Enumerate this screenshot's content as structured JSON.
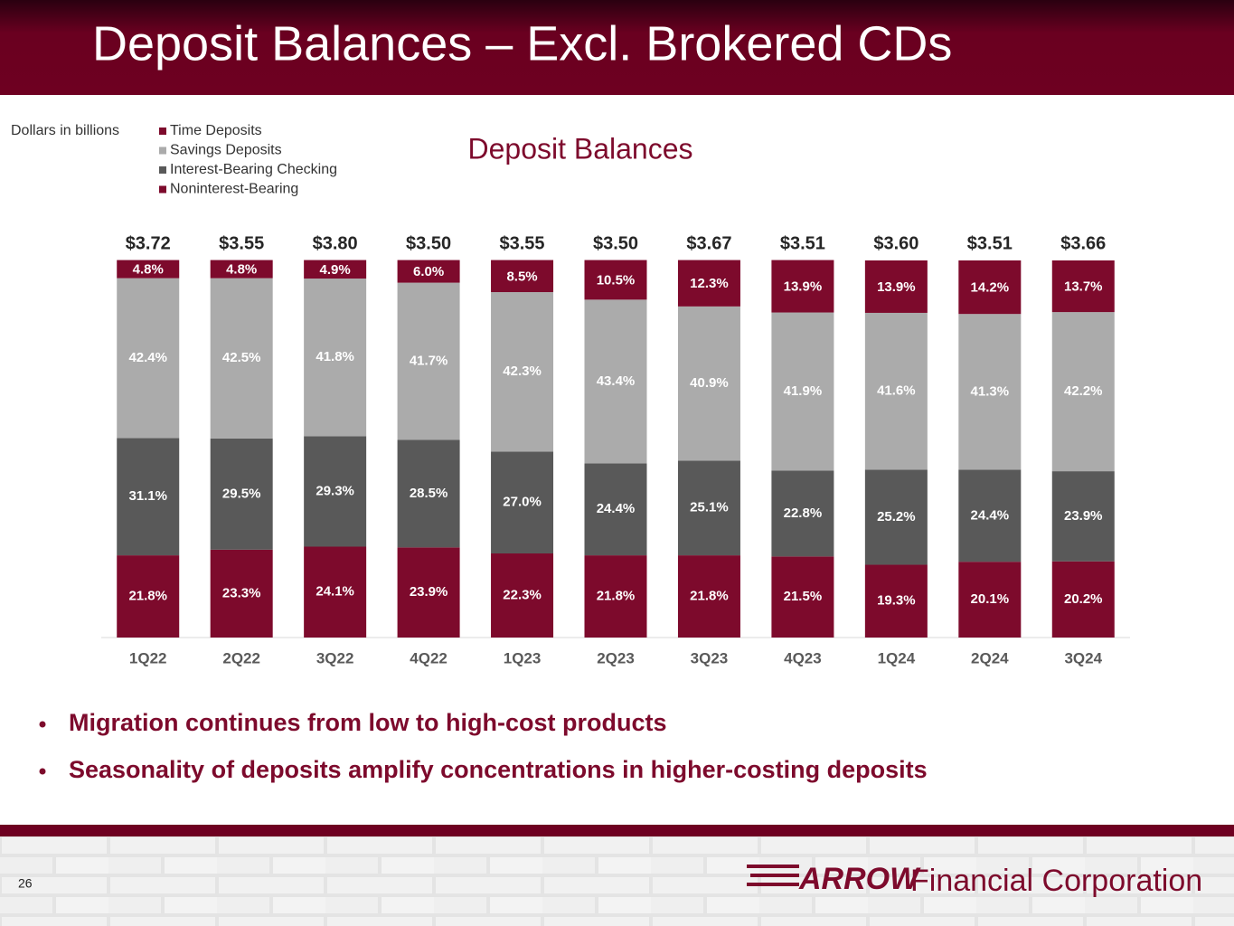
{
  "header": {
    "title": "Deposit Balances – Excl. Brokered CDs"
  },
  "chart_data": {
    "type": "stacked_bar_100",
    "title": "Deposit Balances",
    "units_note": "Dollars in billions",
    "categories": [
      "1Q22",
      "2Q22",
      "3Q22",
      "4Q22",
      "1Q23",
      "2Q23",
      "3Q23",
      "4Q23",
      "1Q24",
      "2Q24",
      "3Q24"
    ],
    "totals": [
      3.72,
      3.55,
      3.8,
      3.5,
      3.55,
      3.5,
      3.67,
      3.51,
      3.6,
      3.51,
      3.66
    ],
    "total_labels": [
      "$3.72",
      "$3.55",
      "$3.80",
      "$3.50",
      "$3.55",
      "$3.50",
      "$3.67",
      "$3.51",
      "$3.60",
      "$3.51",
      "$3.66"
    ],
    "ylim": [
      0,
      100
    ],
    "series": [
      {
        "name": "Time Deposits",
        "color": "#7d0a2c",
        "values": [
          4.8,
          4.8,
          4.9,
          6.0,
          8.5,
          10.5,
          12.3,
          13.9,
          13.9,
          14.2,
          13.7
        ],
        "value_labels": [
          "4.8%",
          "4.8%",
          "4.9%",
          "6.0%",
          "8.5%",
          "10.5%",
          "12.3%",
          "13.9%",
          "13.9%",
          "14.2%",
          "13.7%"
        ]
      },
      {
        "name": "Savings Deposits",
        "color": "#ababab",
        "values": [
          42.4,
          42.5,
          41.8,
          41.7,
          42.3,
          43.4,
          40.9,
          41.9,
          41.6,
          41.3,
          42.2
        ],
        "value_labels": [
          "42.4%",
          "42.5%",
          "41.8%",
          "41.7%",
          "42.3%",
          "43.4%",
          "40.9%",
          "41.9%",
          "41.6%",
          "41.3%",
          "42.2%"
        ]
      },
      {
        "name": "Interest-Bearing Checking",
        "color": "#595959",
        "values": [
          31.1,
          29.5,
          29.3,
          28.5,
          27.0,
          24.4,
          25.1,
          22.8,
          25.2,
          24.4,
          23.9
        ],
        "value_labels": [
          "31.1%",
          "29.5%",
          "29.3%",
          "28.5%",
          "27.0%",
          "24.4%",
          "25.1%",
          "22.8%",
          "25.2%",
          "24.4%",
          "23.9%"
        ]
      },
      {
        "name": "Noninterest-Bearing",
        "color": "#7d0a2c",
        "values": [
          21.8,
          23.3,
          24.1,
          23.9,
          22.3,
          21.8,
          21.8,
          21.5,
          19.3,
          20.1,
          20.2
        ],
        "value_labels": [
          "21.8%",
          "23.3%",
          "24.1%",
          "23.9%",
          "22.3%",
          "21.8%",
          "21.8%",
          "21.5%",
          "19.3%",
          "20.1%",
          "20.2%"
        ]
      }
    ]
  },
  "bullets": [
    "Migration continues from low to high-cost products",
    "Seasonality of deposits amplify concentrations in higher-costing deposits"
  ],
  "footer": {
    "page_number": "26",
    "logo_mark": "ARROW",
    "logo_text": "Financial Corporation"
  }
}
